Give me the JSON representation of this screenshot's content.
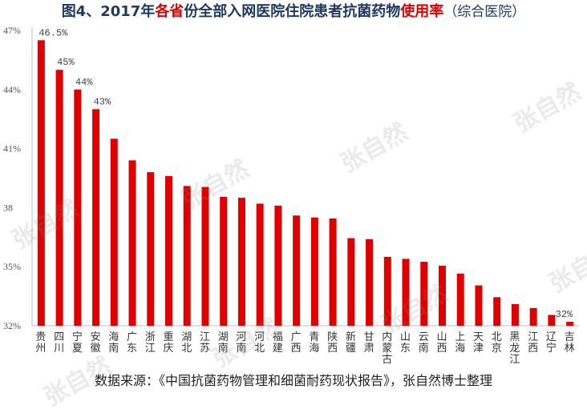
{
  "title": {
    "part1": "图4、2017年",
    "part2": "各省",
    "part3": "份全部入网医院住院患者抗菌药物",
    "part4": "使用率",
    "part5": "（综合医院）"
  },
  "source": "数据来源：《中国抗菌药物管理和细菌耐药现状报告》，张自然博士整理",
  "watermark": "张自然",
  "colors": {
    "bar": "#e00000",
    "title": "#1f3864",
    "highlight": "#e00000",
    "grid": "#d9d9d9"
  },
  "chart_data": {
    "type": "bar",
    "categories": [
      "贵州",
      "四川",
      "宁夏",
      "安徽",
      "海南",
      "广东",
      "浙江",
      "重庆",
      "湖北",
      "江苏",
      "湖南",
      "河南",
      "河北",
      "福建",
      "广西",
      "青海",
      "陕西",
      "新疆",
      "甘肃",
      "内蒙古",
      "山东",
      "云南",
      "山西",
      "上海",
      "天津",
      "北京",
      "黑龙江",
      "江西",
      "辽宁",
      "吉林"
    ],
    "values": [
      46.5,
      45,
      44,
      43,
      41.5,
      40.4,
      39.8,
      39.6,
      39.1,
      39.05,
      38.55,
      38.5,
      38.2,
      38.1,
      37.6,
      37.5,
      37.45,
      36.45,
      36.4,
      35.5,
      35.4,
      35.25,
      35.05,
      34.65,
      34.05,
      33.45,
      33.1,
      32.9,
      32.55,
      32.2
    ],
    "data_labels": [
      {
        "index": 0,
        "text": "46.5%"
      },
      {
        "index": 1,
        "text": "45%"
      },
      {
        "index": 2,
        "text": "44%"
      },
      {
        "index": 3,
        "text": "43%"
      },
      {
        "index": 29,
        "text": "32%"
      }
    ],
    "yticks": [
      {
        "value": 47,
        "label": "47%"
      },
      {
        "value": 44,
        "label": "44%"
      },
      {
        "value": 41,
        "label": "41%"
      },
      {
        "value": 38,
        "label": "38"
      },
      {
        "value": 35,
        "label": "35%"
      },
      {
        "value": 32,
        "label": "32%"
      }
    ],
    "ylim": [
      32,
      47
    ],
    "grid": false,
    "legend": "none"
  }
}
